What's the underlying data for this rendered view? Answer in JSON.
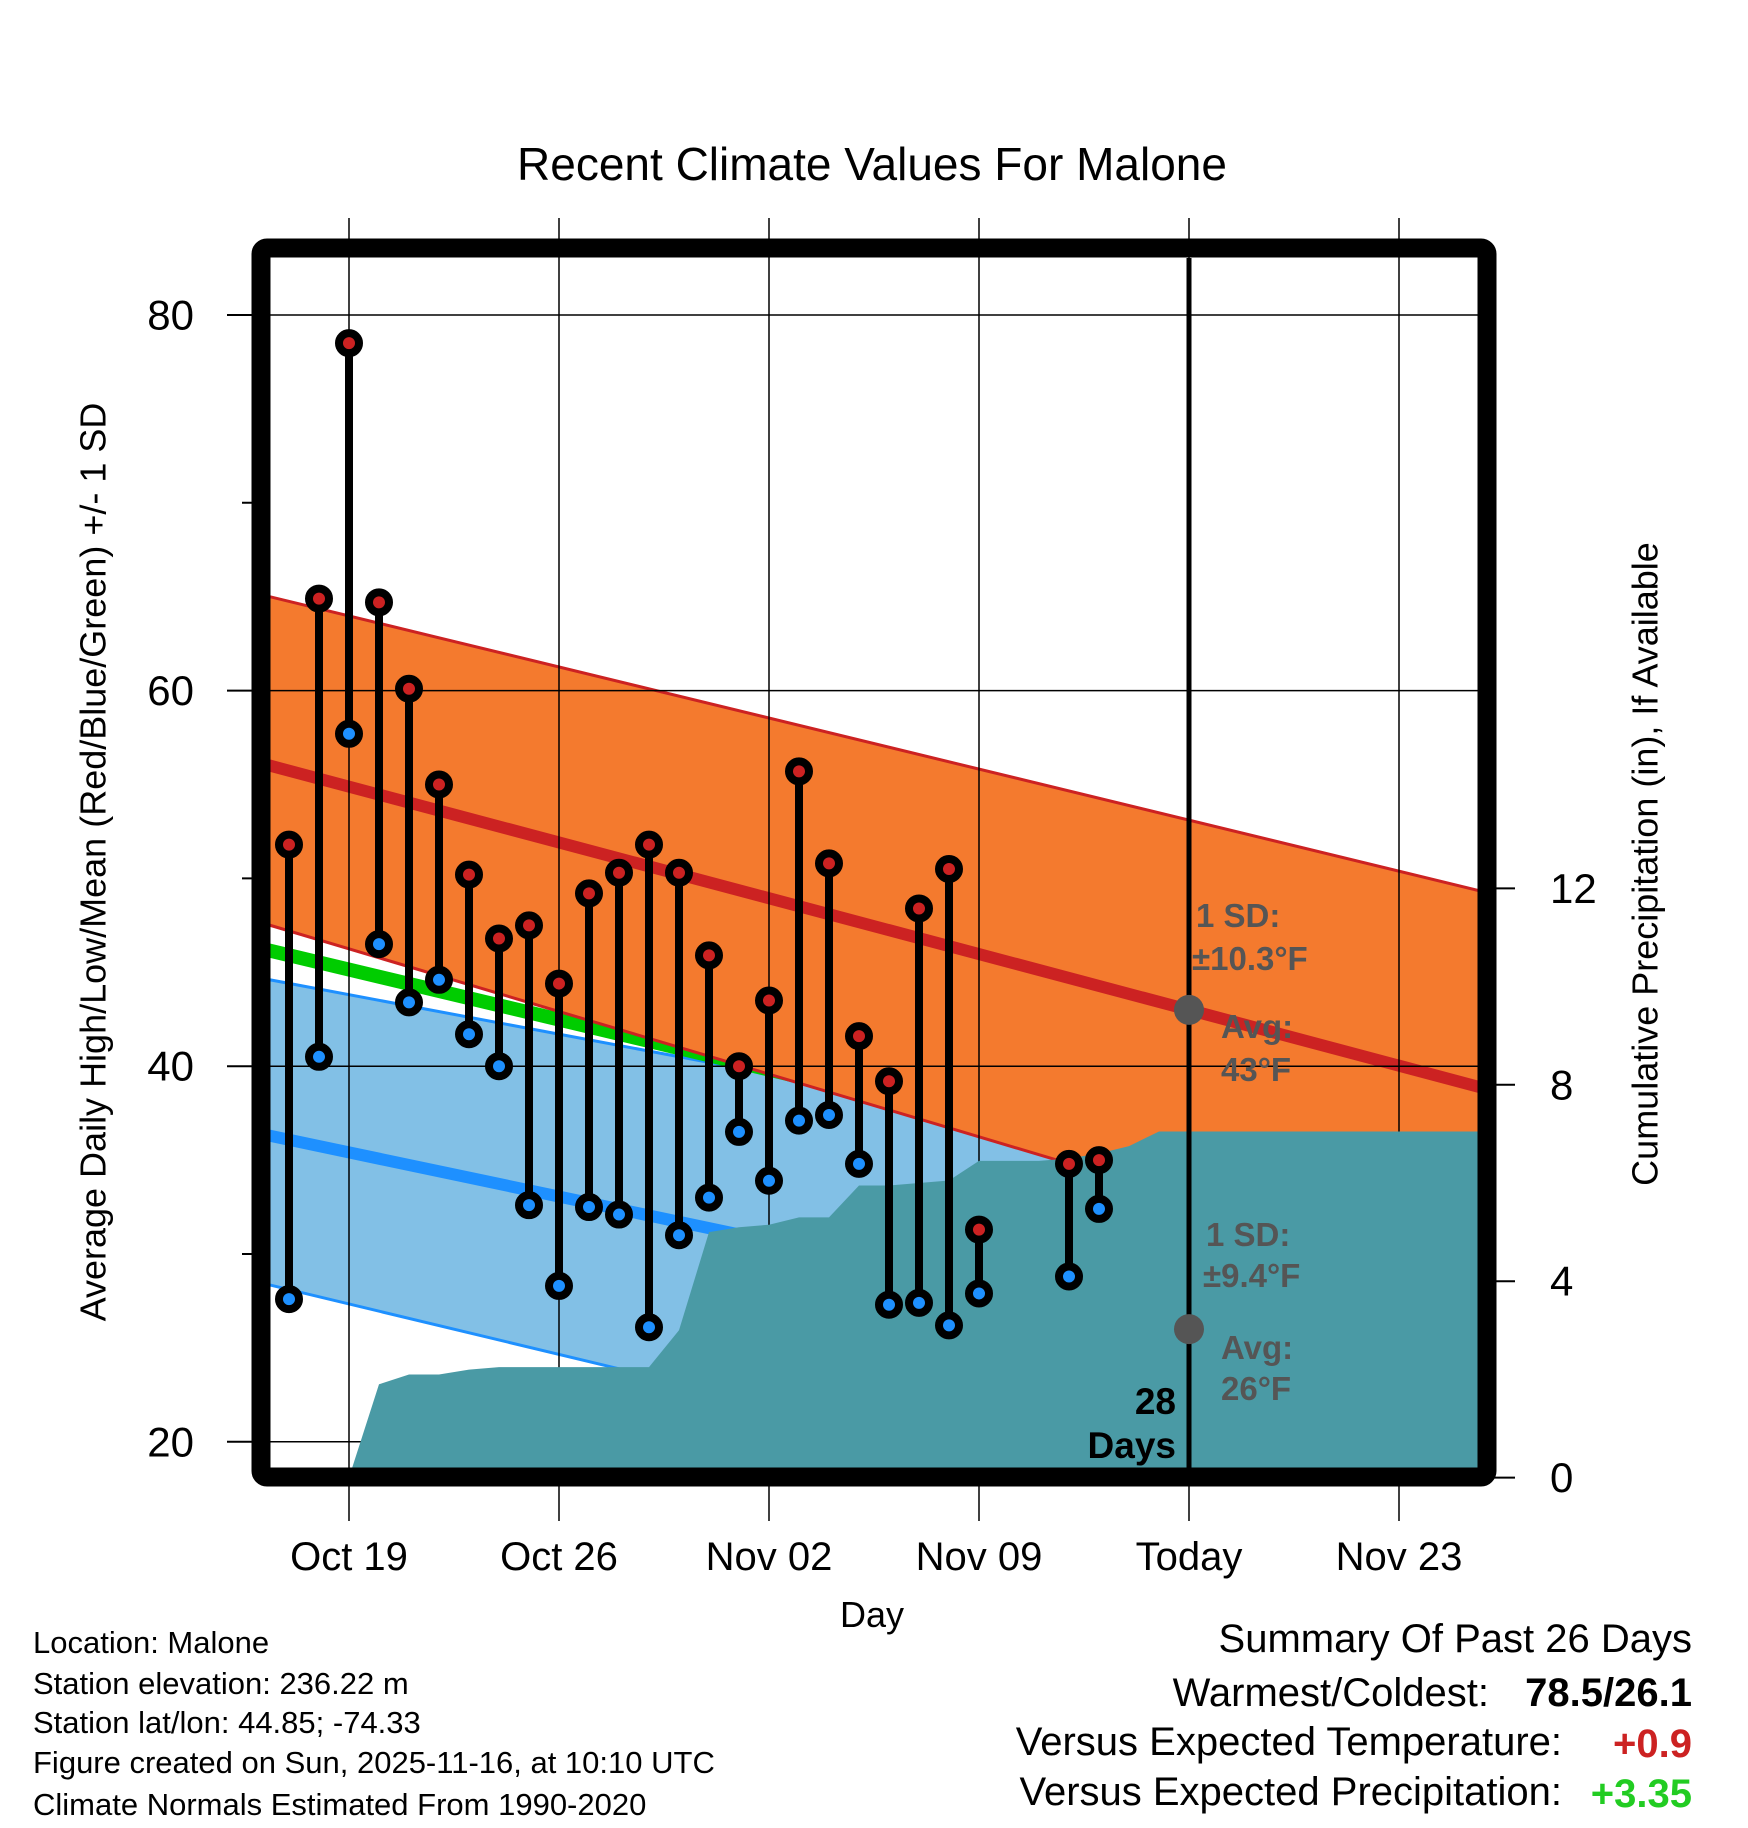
{
  "chart_data": {
    "type": "line",
    "title": "Recent Climate Values For Malone",
    "xlabel": "Day",
    "ylabel": "Average Daily High/Low/Mean (Red/Blue/Green) +/- 1 SD",
    "y2label": "Cumulative Precipitation (in), If Available",
    "ylim": [
      18.6,
      83.0
    ],
    "y2lim": [
      0,
      24.8
    ],
    "xlim": [
      "2025-10-16",
      "2025-11-27"
    ],
    "grid": true,
    "yticks": [
      {
        "value": 80,
        "label": "80"
      },
      {
        "value": 60,
        "label": "60"
      },
      {
        "value": 40,
        "label": "40"
      },
      {
        "value": 20,
        "label": "20"
      }
    ],
    "yminor": [
      70,
      50,
      30
    ],
    "y2ticks": [
      {
        "value": 12,
        "label": "12"
      },
      {
        "value": 8,
        "label": "8"
      },
      {
        "value": 4,
        "label": "4"
      },
      {
        "value": 0,
        "label": "0"
      }
    ],
    "xticks": [
      {
        "date": "2025-10-19",
        "label": "Oct 19"
      },
      {
        "date": "2025-10-26",
        "label": "Oct 26"
      },
      {
        "date": "2025-11-02",
        "label": "Nov 02"
      },
      {
        "date": "2025-11-09",
        "label": "Nov 09"
      },
      {
        "date": "2025-11-16",
        "label": "Today"
      },
      {
        "date": "2025-11-23",
        "label": "Nov 23"
      }
    ],
    "today": "2025-11-16",
    "observed": {
      "dates": [
        "2025-10-17",
        "2025-10-18",
        "2025-10-19",
        "2025-10-20",
        "2025-10-21",
        "2025-10-22",
        "2025-10-23",
        "2025-10-24",
        "2025-10-25",
        "2025-10-26",
        "2025-10-27",
        "2025-10-28",
        "2025-10-29",
        "2025-10-30",
        "2025-10-31",
        "2025-11-01",
        "2025-11-02",
        "2025-11-03",
        "2025-11-04",
        "2025-11-05",
        "2025-11-06",
        "2025-11-07",
        "2025-11-08",
        "2025-11-09",
        "2025-11-12",
        "2025-11-13"
      ],
      "high": [
        51.8,
        64.9,
        78.5,
        64.7,
        60.1,
        55.0,
        50.2,
        46.8,
        47.5,
        44.4,
        49.2,
        50.3,
        51.8,
        50.3,
        45.9,
        40.0,
        43.5,
        55.7,
        50.8,
        41.6,
        39.2,
        48.4,
        50.5,
        31.3,
        34.8,
        35.0
      ],
      "low": [
        27.6,
        40.5,
        57.7,
        46.5,
        43.4,
        44.6,
        41.7,
        40.0,
        32.6,
        28.3,
        32.5,
        32.1,
        26.1,
        31.0,
        33.0,
        36.5,
        33.9,
        37.1,
        37.4,
        34.8,
        27.3,
        27.4,
        26.2,
        27.9,
        28.8,
        32.4
      ]
    },
    "normals": {
      "dates": [
        "2025-10-16",
        "2025-11-27"
      ],
      "high_mean": [
        56.16,
        38.33
      ],
      "high_upper_sd": [
        65.14,
        48.83
      ],
      "high_lower_sd": [
        47.68,
        27.66
      ],
      "low_mean": [
        36.42,
        22.3
      ],
      "low_upper_sd": [
        44.71,
        32.1
      ],
      "low_lower_sd": [
        28.49,
        12.38
      ],
      "mean": [
        46.29,
        30.3
      ]
    },
    "precipitation": {
      "dates": [
        "2025-10-19",
        "2025-10-20",
        "2025-10-21",
        "2025-10-22",
        "2025-10-23",
        "2025-10-24",
        "2025-10-29",
        "2025-10-30",
        "2025-10-31",
        "2025-11-01",
        "2025-11-02",
        "2025-11-03",
        "2025-11-04",
        "2025-11-05",
        "2025-11-06",
        "2025-11-07",
        "2025-11-08",
        "2025-11-09",
        "2025-11-11",
        "2025-11-12",
        "2025-11-13",
        "2025-11-14",
        "2025-11-15",
        "2025-11-27"
      ],
      "cumulative_in": [
        0,
        1.9,
        2.1,
        2.1,
        2.2,
        2.25,
        2.25,
        3.0,
        5.0,
        5.1,
        5.15,
        5.3,
        5.3,
        5.95,
        5.95,
        6.0,
        6.05,
        6.45,
        6.45,
        6.5,
        6.6,
        6.75,
        7.05,
        7.05
      ]
    },
    "annotations": {
      "high_sd_line1": "1 SD:",
      "high_sd_line2": "±10.3°F",
      "high_avg_line1": "Avg:",
      "high_avg_line2": "43°F",
      "high_avg_value": 43,
      "low_sd_line1": "1 SD:",
      "low_sd_line2": "±9.4°F",
      "low_avg_line1": "Avg:",
      "low_avg_line2": "26°F",
      "low_avg_value": 26,
      "days_line1": "28",
      "days_line2": "Days"
    },
    "colors": {
      "high_band": "#f47a2e",
      "low_band": "#82c0e6",
      "high_line": "#cc2222",
      "low_line": "#1e90ff",
      "mean_line": "#00cc00",
      "precip": "#4a9aa5",
      "high_marker": "#cc2222",
      "low_marker": "#1e90ff",
      "annotation": "#555555"
    }
  },
  "footer": {
    "location": "Location: Malone",
    "elevation": "Station elevation: 236.22 m",
    "latlon": "Station lat/lon: 44.85; -74.33",
    "created": "Figure created on Sun, 2025-11-16, at 10:10 UTC",
    "normals": "Climate Normals Estimated From 1990-2020"
  },
  "summary": {
    "title": "Summary Of Past 26 Days",
    "warmest_label": "Warmest/Coldest:",
    "warmest_value": "78.5/26.1",
    "temp_label": "Versus Expected Temperature:",
    "temp_value": "+0.9",
    "temp_color": "#cc2222",
    "precip_label": "Versus Expected Precipitation:",
    "precip_value": "+3.35",
    "precip_color": "#22cc22"
  }
}
